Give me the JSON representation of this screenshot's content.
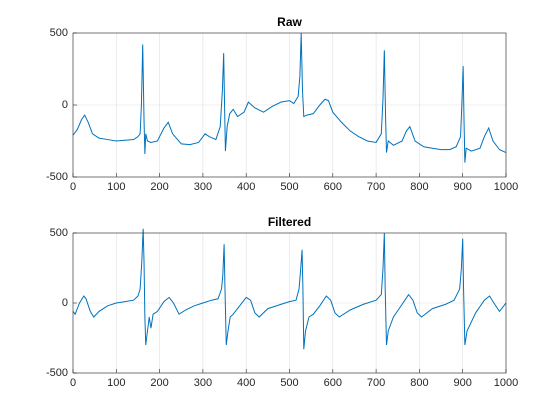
{
  "chart_data": [
    {
      "type": "line",
      "title": "Raw",
      "color": "#0072bd",
      "grid": true,
      "xlim": [
        0,
        1000
      ],
      "xticks": [
        0,
        100,
        200,
        300,
        400,
        500,
        600,
        700,
        800,
        900,
        1000
      ],
      "ylim": [
        -500,
        500
      ],
      "yticks": [
        -500,
        0,
        500
      ],
      "x": [
        0,
        10,
        20,
        27,
        35,
        45,
        60,
        80,
        100,
        120,
        140,
        150,
        155,
        158,
        161,
        164,
        166,
        168,
        172,
        180,
        195,
        210,
        220,
        230,
        250,
        270,
        290,
        305,
        315,
        330,
        340,
        345,
        348,
        350,
        352,
        356,
        362,
        370,
        380,
        395,
        405,
        420,
        440,
        460,
        480,
        500,
        510,
        520,
        524,
        527,
        530,
        533,
        540,
        555,
        570,
        582,
        590,
        600,
        620,
        640,
        660,
        680,
        700,
        712,
        716,
        719,
        722,
        724,
        728,
        740,
        760,
        770,
        778,
        790,
        810,
        830,
        850,
        870,
        885,
        895,
        898,
        901,
        903,
        905,
        908,
        920,
        940,
        950,
        960,
        970,
        985,
        1000
      ],
      "values": [
        -210,
        -170,
        -100,
        -70,
        -120,
        -200,
        -230,
        -240,
        -250,
        -245,
        -240,
        -220,
        -200,
        0,
        420,
        -100,
        -340,
        -200,
        -250,
        -260,
        -250,
        -160,
        -120,
        -200,
        -270,
        -275,
        -260,
        -200,
        -220,
        -240,
        -150,
        100,
        360,
        0,
        -320,
        -150,
        -60,
        -30,
        -80,
        -50,
        20,
        -20,
        -50,
        -10,
        20,
        30,
        10,
        60,
        200,
        500,
        100,
        -80,
        -70,
        -60,
        0,
        40,
        30,
        -50,
        -120,
        -180,
        -220,
        -250,
        -260,
        -200,
        50,
        380,
        -100,
        -330,
        -250,
        -280,
        -250,
        -180,
        -150,
        -250,
        -290,
        -300,
        -310,
        -310,
        -290,
        -220,
        0,
        270,
        -100,
        -400,
        -300,
        -320,
        -300,
        -220,
        -160,
        -250,
        -310,
        -330
      ]
    },
    {
      "type": "line",
      "title": "Filtered",
      "color": "#0072bd",
      "grid": true,
      "xlim": [
        0,
        1000
      ],
      "xticks": [
        0,
        100,
        200,
        300,
        400,
        500,
        600,
        700,
        800,
        900,
        1000
      ],
      "ylim": [
        -500,
        500
      ],
      "yticks": [
        -500,
        0,
        500
      ],
      "x": [
        0,
        5,
        15,
        25,
        30,
        40,
        48,
        60,
        80,
        100,
        120,
        140,
        150,
        155,
        159,
        162,
        164,
        166,
        168,
        172,
        176,
        180,
        185,
        195,
        210,
        222,
        232,
        245,
        260,
        280,
        300,
        320,
        335,
        343,
        346,
        349,
        351,
        354,
        358,
        363,
        370,
        385,
        400,
        410,
        420,
        430,
        450,
        480,
        500,
        515,
        522,
        526,
        529,
        531,
        533,
        537,
        545,
        555,
        570,
        585,
        595,
        605,
        615,
        640,
        670,
        700,
        712,
        716,
        719,
        721,
        724,
        728,
        740,
        760,
        775,
        785,
        795,
        805,
        830,
        860,
        880,
        893,
        897,
        900,
        902,
        905,
        910,
        930,
        950,
        962,
        972,
        985,
        995,
        1000
      ],
      "values": [
        -60,
        -80,
        0,
        50,
        30,
        -60,
        -100,
        -60,
        -20,
        0,
        10,
        20,
        50,
        100,
        300,
        530,
        300,
        -100,
        -300,
        -200,
        -100,
        -180,
        -80,
        -60,
        10,
        40,
        0,
        -80,
        -50,
        -20,
        0,
        20,
        30,
        100,
        200,
        420,
        100,
        -300,
        -200,
        -100,
        -80,
        -20,
        40,
        20,
        -70,
        -100,
        -40,
        -10,
        10,
        20,
        100,
        250,
        380,
        100,
        -330,
        -200,
        -100,
        -80,
        -20,
        50,
        20,
        -70,
        -100,
        -50,
        -10,
        20,
        60,
        250,
        500,
        100,
        -300,
        -200,
        -100,
        -10,
        60,
        20,
        -70,
        -100,
        -40,
        -10,
        20,
        100,
        250,
        460,
        100,
        -300,
        -200,
        -70,
        20,
        50,
        0,
        -60,
        -20,
        0
      ]
    }
  ]
}
